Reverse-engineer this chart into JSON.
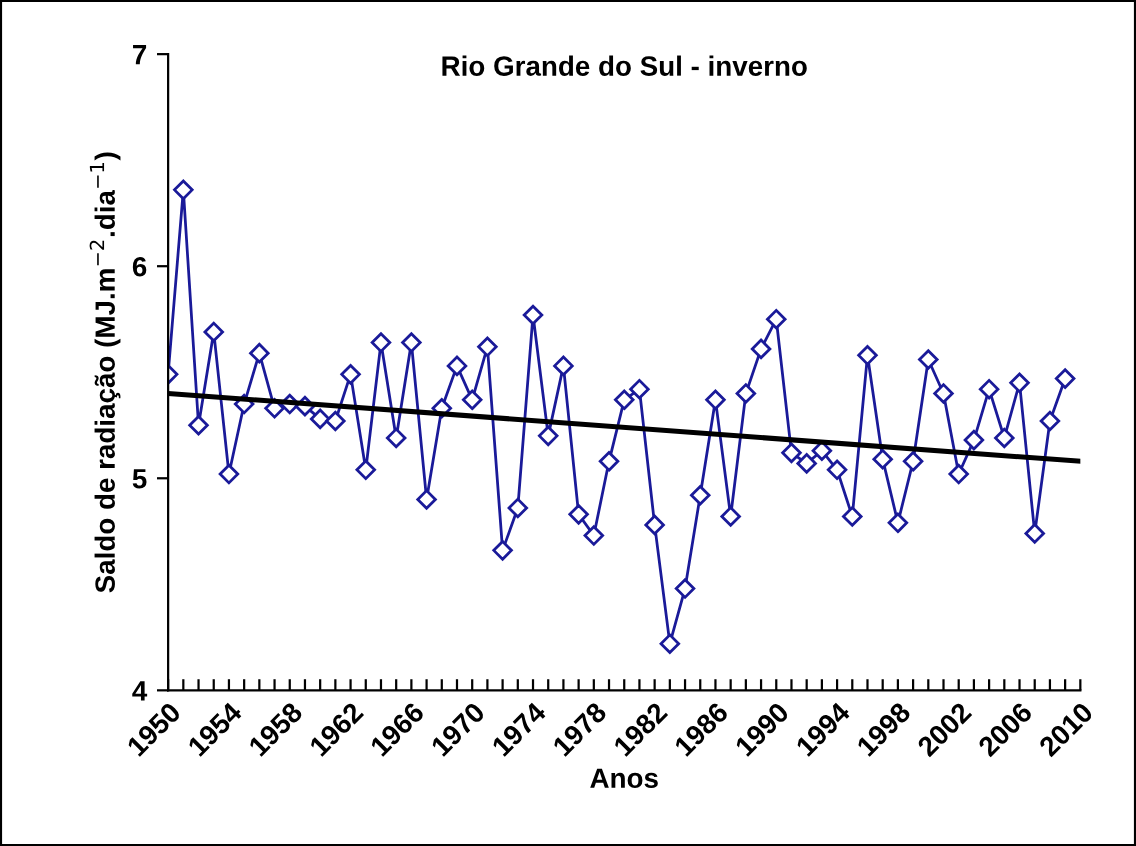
{
  "chart_data": {
    "type": "line",
    "title": "Rio Grande do Sul - inverno",
    "xlabel": "Anos",
    "ylabel": "Saldo de radiação (MJ.m$^{−2}$.dia$^{−1}$)",
    "xlim": [
      1950,
      2010
    ],
    "xticks": [
      1950,
      {
        "value": 1951,
        "label": null
      },
      {
        "value": 1952,
        "label": null
      },
      {
        "value": 1953,
        "label": null
      },
      1954,
      {
        "value": 1955,
        "label": null
      },
      {
        "value": 1956,
        "label": null
      },
      {
        "value": 1957,
        "label": null
      },
      1958,
      {
        "value": 1959,
        "label": null
      },
      {
        "value": 1960,
        "label": null
      },
      {
        "value": 1961,
        "label": null
      },
      1962,
      {
        "value": 1963,
        "label": null
      },
      {
        "value": 1964,
        "label": null
      },
      {
        "value": 1965,
        "label": null
      },
      1966,
      {
        "value": 1967,
        "label": null
      },
      {
        "value": 1968,
        "label": null
      },
      {
        "value": 1969,
        "label": null
      },
      1970,
      {
        "value": 1971,
        "label": null
      },
      {
        "value": 1972,
        "label": null
      },
      {
        "value": 1973,
        "label": null
      },
      1974,
      {
        "value": 1975,
        "label": null
      },
      {
        "value": 1976,
        "label": null
      },
      {
        "value": 1977,
        "label": null
      },
      1978,
      {
        "value": 1979,
        "label": null
      },
      {
        "value": 1980,
        "label": null
      },
      {
        "value": 1981,
        "label": null
      },
      1982,
      {
        "value": 1983,
        "label": null
      },
      {
        "value": 1984,
        "label": null
      },
      {
        "value": 1985,
        "label": null
      },
      1986,
      {
        "value": 1987,
        "label": null
      },
      {
        "value": 1988,
        "label": null
      },
      {
        "value": 1989,
        "label": null
      },
      1990,
      {
        "value": 1991,
        "label": null
      },
      {
        "value": 1992,
        "label": null
      },
      {
        "value": 1993,
        "label": null
      },
      1994,
      {
        "value": 1995,
        "label": null
      },
      {
        "value": 1996,
        "label": null
      },
      {
        "value": 1997,
        "label": null
      },
      1998,
      {
        "value": 1999,
        "label": null
      },
      {
        "value": 2000,
        "label": null
      },
      {
        "value": 2001,
        "label": null
      },
      2002,
      {
        "value": 2003,
        "label": null
      },
      {
        "value": 2004,
        "label": null
      },
      {
        "value": 2005,
        "label": null
      },
      2006,
      {
        "value": 2007,
        "label": null
      },
      {
        "value": 2008,
        "label": null
      },
      {
        "value": 2009,
        "label": null
      },
      2010
    ],
    "ylim": [
      4,
      7
    ],
    "yticks": [
      4,
      5,
      6,
      7
    ],
    "grid": false,
    "legend": false,
    "series": [
      {
        "color": "#1a1a99",
        "marker": "diamond",
        "line_style": "solid",
        "x": [
          1950,
          1951,
          1952,
          1953,
          1954,
          1955,
          1956,
          1957,
          1958,
          1959,
          1960,
          1961,
          1962,
          1963,
          1964,
          1965,
          1966,
          1967,
          1968,
          1969,
          1970,
          1971,
          1972,
          1973,
          1974,
          1975,
          1976,
          1977,
          1978,
          1979,
          1980,
          1981,
          1982,
          1983,
          1984,
          1985,
          1986,
          1987,
          1988,
          1989,
          1990,
          1991,
          1992,
          1993,
          1994,
          1995,
          1996,
          1997,
          1998,
          1999,
          2000,
          2001,
          2002,
          2003,
          2004,
          2005,
          2006,
          2007,
          2008,
          2009
        ],
        "values": [
          5.49,
          6.36,
          5.25,
          5.69,
          5.02,
          5.35,
          5.59,
          5.33,
          5.35,
          5.34,
          5.28,
          5.27,
          5.49,
          5.04,
          5.64,
          5.19,
          5.64,
          4.9,
          5.33,
          5.53,
          5.37,
          5.62,
          4.66,
          4.86,
          5.77,
          5.2,
          5.53,
          4.83,
          4.73,
          5.08,
          5.37,
          5.42,
          4.78,
          4.22,
          4.48,
          4.92,
          5.37,
          4.82,
          5.4,
          5.61,
          5.75,
          5.12,
          5.07,
          5.13,
          5.04,
          4.82,
          5.58,
          5.09,
          4.79,
          5.08,
          5.56,
          5.4,
          5.02,
          5.18,
          5.42,
          5.19,
          5.45,
          4.74,
          5.27,
          5.47
        ]
      },
      {
        "color": "#000000",
        "marker": "none",
        "line_style": "solid",
        "x": [
          1950,
          2010
        ],
        "values": [
          5.4,
          5.08
        ]
      }
    ]
  }
}
